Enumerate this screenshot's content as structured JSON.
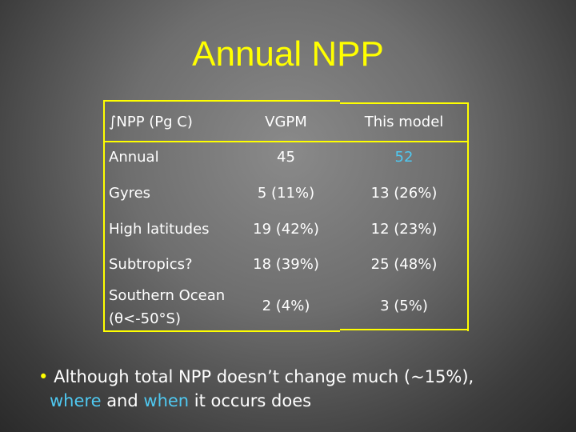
{
  "slide": {
    "title": "Annual NPP"
  },
  "table": {
    "headers": [
      "∫NPP (Pg C)",
      "VGPM",
      "This model"
    ],
    "rows": [
      {
        "label": "Annual",
        "vgpm": "45",
        "model": "52"
      },
      {
        "label": "Gyres",
        "vgpm": "5 (11%)",
        "model": "13 (26%)"
      },
      {
        "label": "High latitudes",
        "vgpm": "19 (42%)",
        "model": "12 (23%)"
      },
      {
        "label": "Subtropics?",
        "vgpm": "18 (39%)",
        "model": "25 (48%)"
      },
      {
        "label_line1": "Southern Ocean",
        "label_line2": "(θ<-50°S)",
        "vgpm": "2 (4%)",
        "model": "3 (5%)"
      }
    ]
  },
  "bullet": {
    "marker": "•",
    "line1": "Although total NPP doesn’t change much (~15%),",
    "where": "where",
    "and": "and",
    "when": "when",
    "rest": "it occurs does"
  },
  "colors": {
    "title": "#ffff00",
    "border": "#ffff00",
    "accent_cyan": "#4fc8f0",
    "text": "#ffffff"
  }
}
